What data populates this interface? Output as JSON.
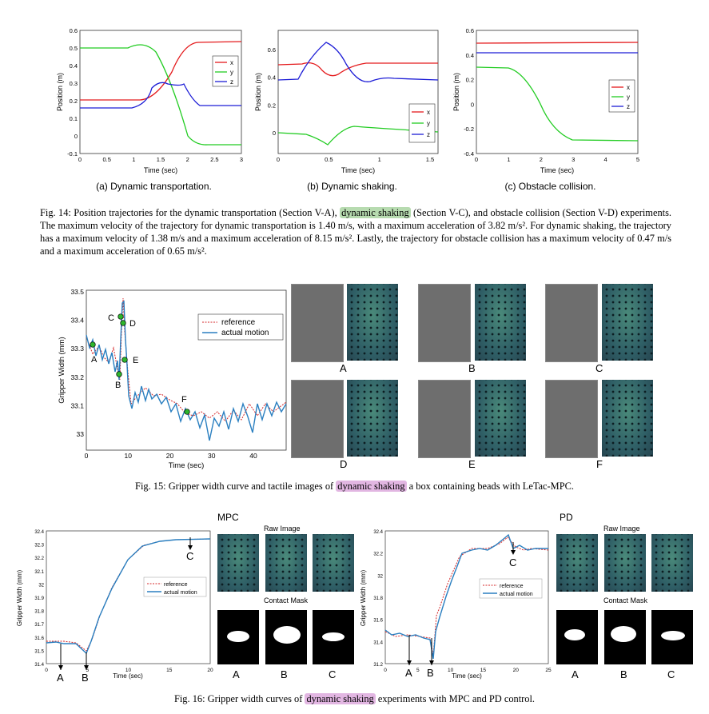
{
  "fig14": {
    "charts": [
      {
        "subcaption": "(a) Dynamic transportation.",
        "xlabel": "Time (sec)",
        "ylabel": "Position (m)",
        "xticks": [
          "0",
          "0.5",
          "1",
          "1.5",
          "2",
          "2.5",
          "3"
        ],
        "yticks": [
          "-0.1",
          "0",
          "0.1",
          "0.2",
          "0.3",
          "0.4",
          "0.5",
          "0.6"
        ],
        "legend": [
          "x",
          "y",
          "z"
        ]
      },
      {
        "subcaption": "(b) Dynamic shaking.",
        "xlabel": "Time (sec)",
        "ylabel": "Position (m)",
        "xticks": [
          "0",
          "0.5",
          "1",
          "1.5"
        ],
        "yticks": [
          "0",
          "0.2",
          "0.4",
          "0.6"
        ],
        "legend": [
          "x",
          "y",
          "z"
        ]
      },
      {
        "subcaption": "(c) Obstacle collision.",
        "xlabel": "Time (sec)",
        "ylabel": "Position (m)",
        "xticks": [
          "0",
          "1",
          "2",
          "3",
          "4",
          "5"
        ],
        "yticks": [
          "-0.4",
          "-0.2",
          "0",
          "0.2",
          "0.4",
          "0.6"
        ],
        "legend": [
          "x",
          "y",
          "z"
        ]
      }
    ],
    "caption_pre": "Fig. 14: Position trajectories for the dynamic transportation (Section V-A), ",
    "caption_hl": "dynamic shaking",
    "caption_post": " (Section V-C), and obstacle collision (Section V-D) experiments. The maximum velocity of the trajectory for dynamic transportation is 1.40 m/s, with a maximum acceleration of 3.82 m/s². For dynamic shaking, the trajectory has a maximum velocity of 1.38 m/s and a maximum acceleration of 8.15 m/s². Lastly, the trajectory for obstacle collision has a maximum velocity of 0.47 m/s and a maximum acceleration of 0.65 m/s²."
  },
  "fig15": {
    "xlabel": "Time (sec)",
    "ylabel": "Gripper Width (mm)",
    "xticks": [
      "0",
      "10",
      "20",
      "30",
      "40"
    ],
    "yticks": [
      "33",
      "33.1",
      "33.2",
      "33.3",
      "33.4",
      "33.5"
    ],
    "legend": [
      "reference",
      "actual motion"
    ],
    "points": [
      "A",
      "B",
      "C",
      "D",
      "E",
      "F"
    ],
    "image_labels": [
      "A",
      "B",
      "C",
      "D",
      "E",
      "F"
    ],
    "caption_pre": "Fig. 15: Gripper width curve and tactile images of ",
    "caption_hl": "dynamic shaking",
    "caption_post": " a box containing beads with LeTac-MPC."
  },
  "fig16": {
    "panels": [
      {
        "title": "MPC",
        "xlabel": "Time (sec)",
        "ylabel": "Gripper Width (mm)",
        "xticks": [
          "0",
          "5",
          "10",
          "15",
          "20"
        ],
        "yticks": [
          "31.4",
          "31.5",
          "31.6",
          "31.7",
          "31.8",
          "31.9",
          "32",
          "32.1",
          "32.2",
          "32.3",
          "32.4"
        ],
        "legend": [
          "reference",
          "actual motion"
        ],
        "points": [
          "A",
          "B",
          "C"
        ],
        "raw_label": "Raw Image",
        "mask_label": "Contact Mask",
        "image_labels": [
          "A",
          "B",
          "C"
        ]
      },
      {
        "title": "PD",
        "xlabel": "Time (sec)",
        "ylabel": "Gripper Width (mm)",
        "xticks": [
          "0",
          "5",
          "10",
          "15",
          "20",
          "25"
        ],
        "yticks": [
          "31.2",
          "31.4",
          "31.6",
          "31.8",
          "32",
          "32.2",
          "32.4"
        ],
        "legend": [
          "reference",
          "actual motion"
        ],
        "points": [
          "A",
          "B",
          "C"
        ],
        "raw_label": "Raw Image",
        "mask_label": "Contact Mask",
        "image_labels": [
          "A",
          "B",
          "C"
        ]
      }
    ],
    "caption_pre": "Fig. 16: Gripper width curves of ",
    "caption_hl": "dynamic shaking",
    "caption_post": " experiments with MPC and PD control."
  },
  "colors": {
    "x": "#e41a1c",
    "y": "#22cc22",
    "z": "#1c1cd6",
    "actual": "#2a7fc0",
    "reference": "#d62728",
    "highlight_green": "#b7dbb0",
    "highlight_pink": "#e2b6e2"
  }
}
